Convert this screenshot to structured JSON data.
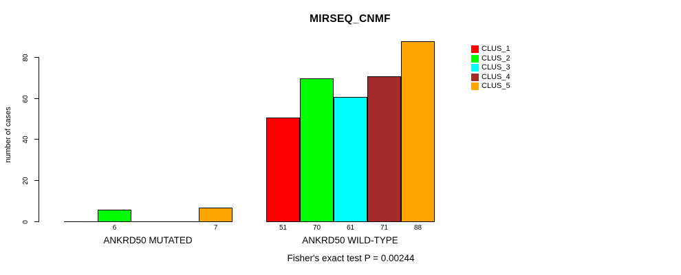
{
  "chart_data": {
    "type": "bar",
    "title": "MIRSEQ_CNMF",
    "ylabel": "number of cases",
    "xlabel": "",
    "caption": "Fisher's exact test P = 0.00244",
    "categories": [
      "ANKRD50 MUTATED",
      "ANKRD50 WILD-TYPE"
    ],
    "series": [
      {
        "name": "CLUS_1",
        "color": "#FF0000",
        "values": [
          0,
          51
        ]
      },
      {
        "name": "CLUS_2",
        "color": "#00FF00",
        "values": [
          6,
          70
        ]
      },
      {
        "name": "CLUS_3",
        "color": "#00FFFF",
        "values": [
          0,
          61
        ]
      },
      {
        "name": "CLUS_4",
        "color": "#A52A2A",
        "values": [
          0,
          71
        ]
      },
      {
        "name": "CLUS_5",
        "color": "#FFA500",
        "values": [
          7,
          88
        ]
      }
    ],
    "yticks": [
      0,
      20,
      40,
      60,
      80
    ],
    "ylim": [
      0,
      88
    ],
    "grid": false,
    "legend_position": "right",
    "bar_value_labels": "shown under non-zero bars only",
    "axis_color": "#000000",
    "background": "#FFFFFF"
  }
}
